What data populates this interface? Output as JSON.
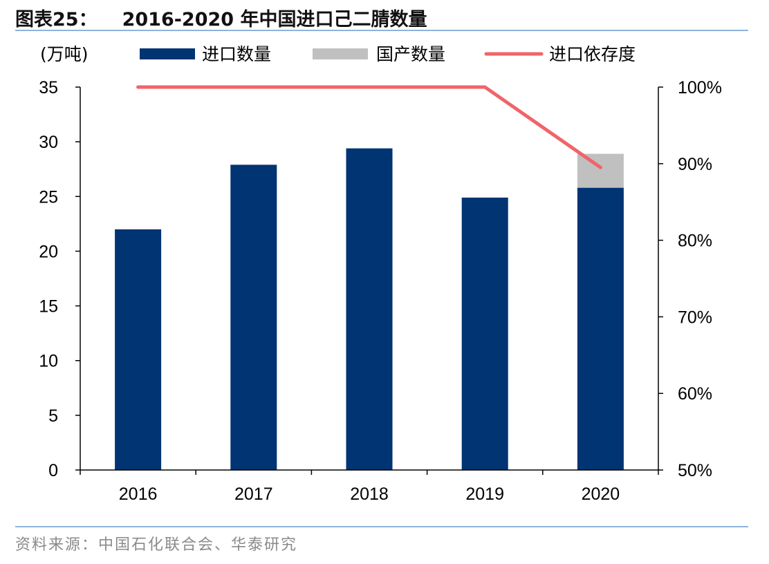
{
  "header": {
    "figure_label": "图表25：",
    "title": "2016-2020 年中国进口己二腈数量"
  },
  "footer": {
    "source": "资料来源：中国石化联合会、华泰研究"
  },
  "colors": {
    "import_bar": "#003473",
    "domestic_bar": "#c0c0c0",
    "dependence_line": "#f06469",
    "axis": "#000000",
    "rule": "#8db3d9"
  },
  "chart_data": {
    "type": "bar",
    "stacked": true,
    "categories": [
      "2016",
      "2017",
      "2018",
      "2019",
      "2020"
    ],
    "unit_label": "(万吨)",
    "series": [
      {
        "name": "进口数量",
        "axis": "left",
        "type": "bar",
        "values": [
          22.0,
          27.9,
          29.4,
          24.9,
          25.8
        ]
      },
      {
        "name": "国产数量",
        "axis": "left",
        "type": "bar",
        "values": [
          0,
          0,
          0,
          0,
          3.1
        ]
      },
      {
        "name": "进口依存度",
        "axis": "right",
        "type": "line",
        "values": [
          1.0,
          1.0,
          1.0,
          1.0,
          0.895
        ]
      }
    ],
    "y_left": {
      "min": 0,
      "max": 35,
      "ticks": [
        "0",
        "5",
        "10",
        "15",
        "20",
        "25",
        "30",
        "35"
      ]
    },
    "y_right": {
      "min": 0.5,
      "max": 1.0,
      "ticks": [
        "50%",
        "60%",
        "70%",
        "80%",
        "90%",
        "100%"
      ]
    },
    "legend": [
      "进口数量",
      "国产数量",
      "进口依存度"
    ],
    "legend_position": "top",
    "grid": false
  }
}
